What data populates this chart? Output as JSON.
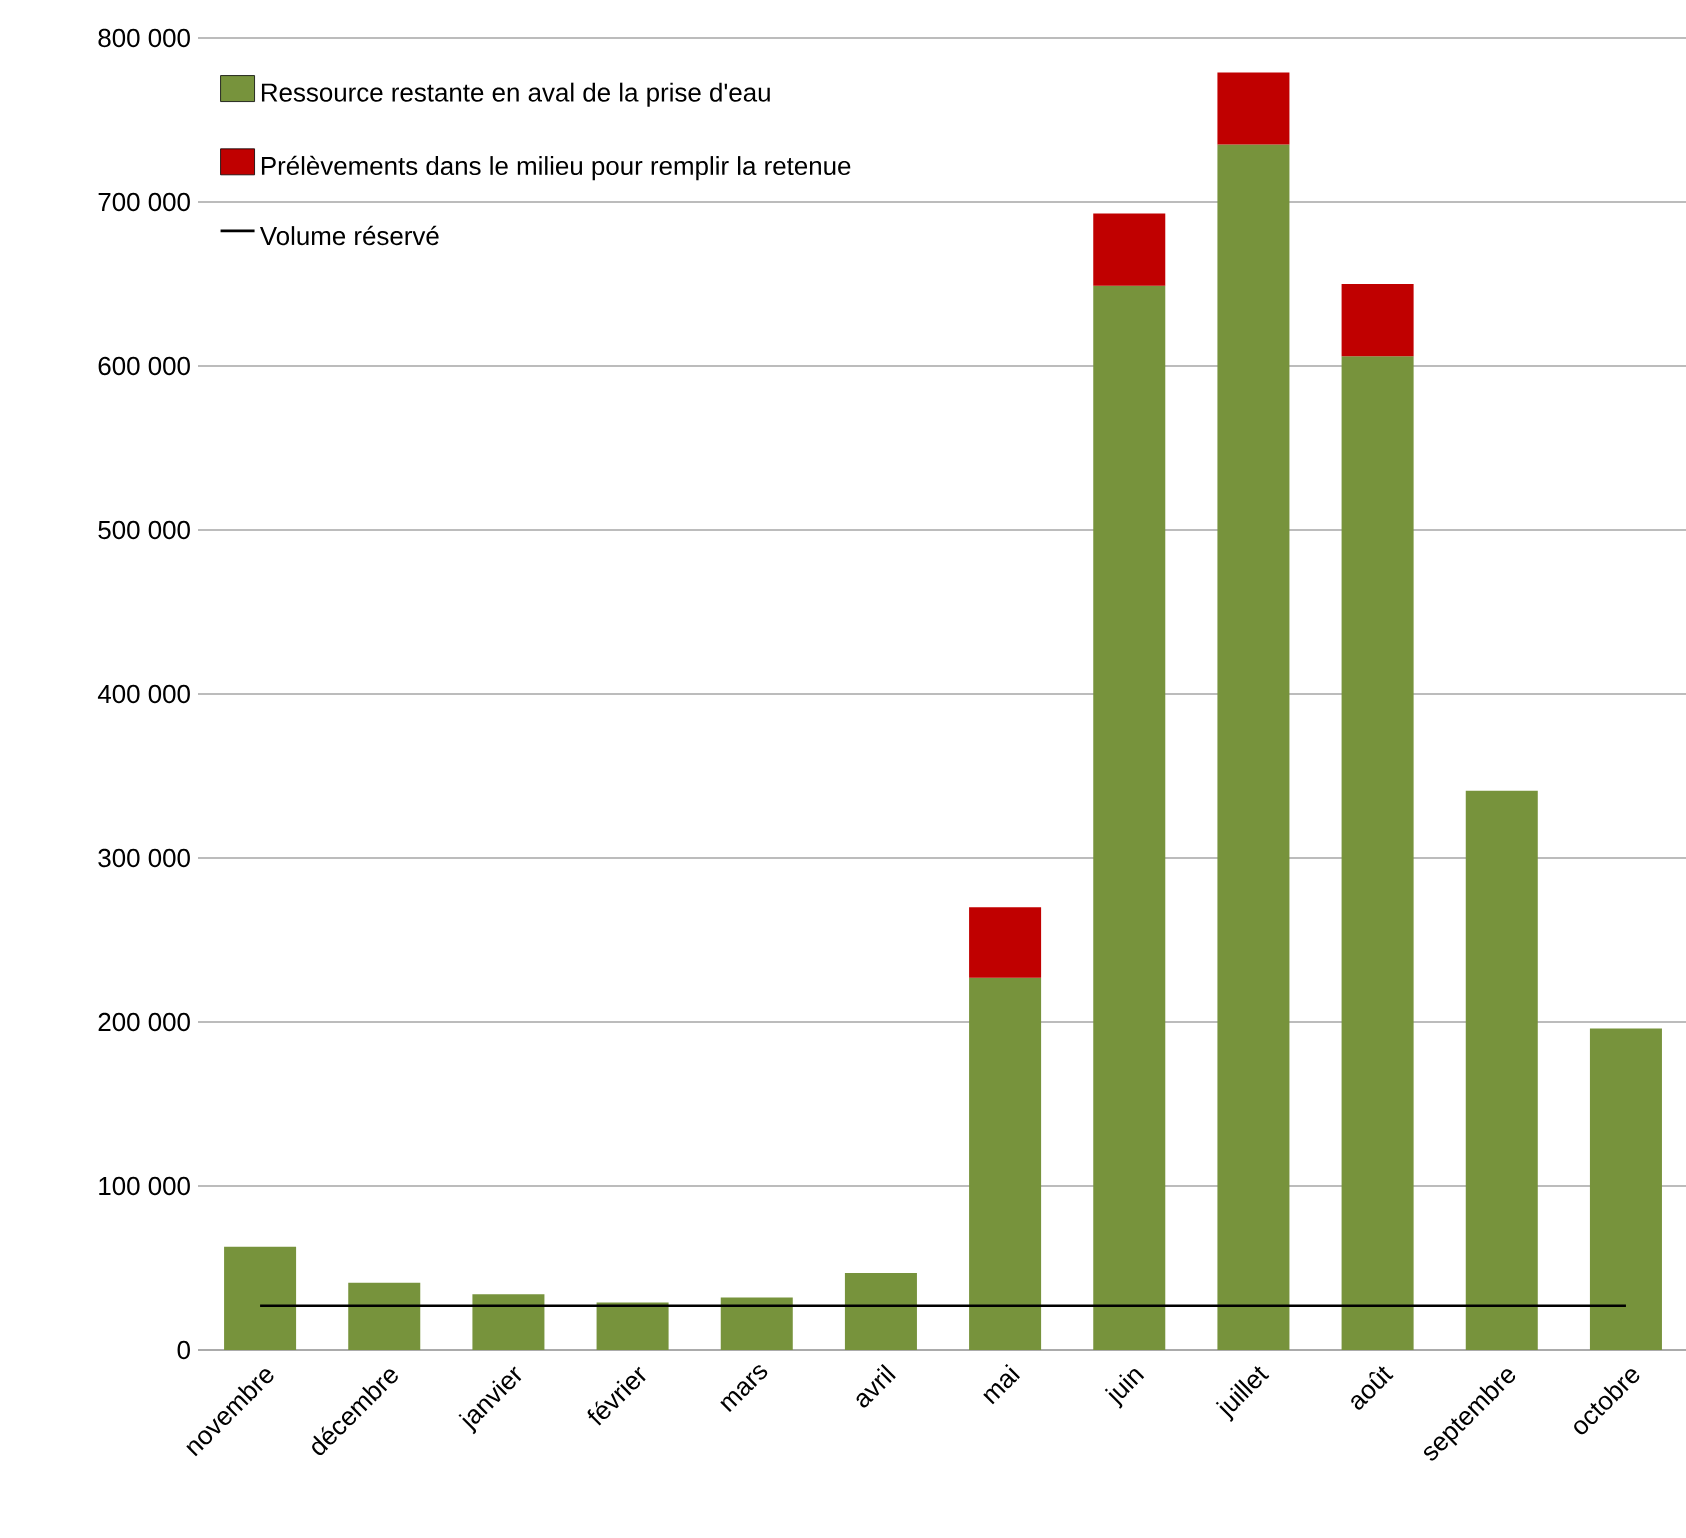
{
  "chart_data": {
    "type": "bar",
    "stacked": true,
    "categories": [
      "novembre",
      "décembre",
      "janvier",
      "février",
      "mars",
      "avril",
      "mai",
      "juin",
      "juillet",
      "août",
      "septembre",
      "octobre"
    ],
    "series": [
      {
        "name": "Ressource restante en aval de la prise d'eau",
        "color": "#77933c",
        "values": [
          63000,
          41000,
          34000,
          29000,
          32000,
          47000,
          227000,
          649000,
          735000,
          606000,
          341000,
          196000
        ]
      },
      {
        "name": "Prélèvements dans le milieu pour remplir la retenue",
        "color": "#c00000",
        "values": [
          null,
          null,
          null,
          null,
          null,
          null,
          43000,
          44000,
          44000,
          44000,
          null,
          null
        ]
      },
      {
        "name": "Volume réservé",
        "type": "line",
        "color": "#000000",
        "values": [
          27000,
          27000,
          27000,
          27000,
          27000,
          27000,
          27000,
          27000,
          27000,
          27000,
          27000,
          27000
        ]
      }
    ],
    "ylim": [
      0,
      800000
    ],
    "yticks": [
      {
        "value": 0,
        "label": "0"
      },
      {
        "value": 100000,
        "label": "100 000"
      },
      {
        "value": 200000,
        "label": "200 000"
      },
      {
        "value": 300000,
        "label": "300 000"
      },
      {
        "value": 400000,
        "label": "400 000"
      },
      {
        "value": 500000,
        "label": "500 000"
      },
      {
        "value": 600000,
        "label": "600 000"
      },
      {
        "value": 700000,
        "label": "700 000"
      },
      {
        "value": 800000,
        "label": "800 000"
      }
    ],
    "grid": "y",
    "legend": "top left"
  }
}
